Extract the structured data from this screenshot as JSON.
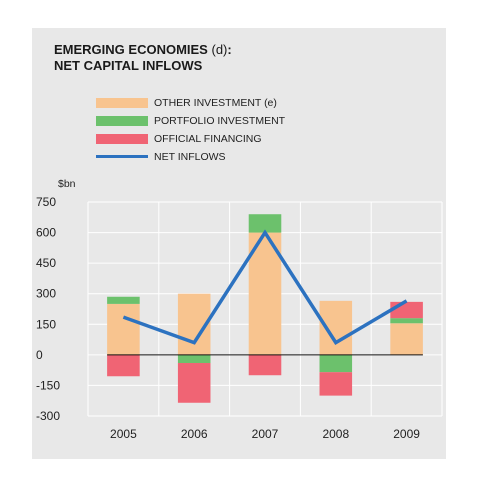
{
  "chart_data": {
    "type": "bar",
    "title_line1": "EMERGING ECONOMIES",
    "title_note": "(d)",
    "title_colon": ":",
    "title_line2": "NET CAPITAL INFLOWS",
    "ylabel": "$bn",
    "categories": [
      "2005",
      "2006",
      "2007",
      "2008",
      "2009"
    ],
    "ylim": [
      -300,
      750
    ],
    "yticks": [
      750,
      600,
      450,
      300,
      150,
      0,
      -150,
      -300
    ],
    "grid": true,
    "legend_position": "top",
    "stacked": true,
    "series": [
      {
        "name": "OTHER INVESTMENT (e)",
        "color": "#f8c48f",
        "kind": "bar",
        "values": [
          250,
          300,
          600,
          265,
          155
        ]
      },
      {
        "name": "PORTFOLIO INVESTMENT",
        "color": "#6cc16c",
        "kind": "bar",
        "values": [
          35,
          -40,
          90,
          -85,
          25
        ]
      },
      {
        "name": "OFFICIAL FINANCING",
        "color": "#f06474",
        "kind": "bar",
        "values": [
          -105,
          -195,
          -100,
          -115,
          80
        ]
      },
      {
        "name": "NET INFLOWS",
        "color": "#2c72c0",
        "kind": "line",
        "values": [
          185,
          60,
          600,
          60,
          265
        ]
      }
    ]
  }
}
